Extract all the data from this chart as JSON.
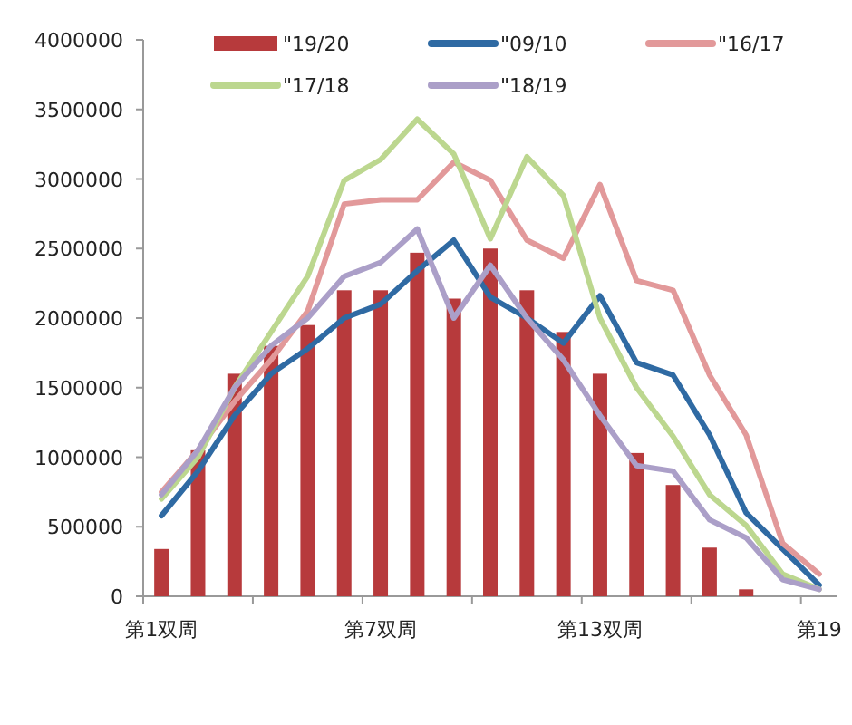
{
  "chart_data": {
    "type": "line",
    "categories": [
      "第1双周",
      null,
      null,
      null,
      null,
      null,
      "第7双周",
      null,
      null,
      null,
      null,
      null,
      "第13双周",
      null,
      null,
      null,
      null,
      null,
      "第19"
    ],
    "series": [
      {
        "name": "\"19/20",
        "type": "bar",
        "color": "#b73a3c",
        "values": [
          340000,
          1050000,
          1600000,
          1800000,
          1950000,
          2200000,
          2200000,
          2470000,
          2140000,
          2500000,
          2200000,
          1900000,
          1600000,
          1030000,
          800000,
          350000,
          50000,
          null,
          null
        ]
      },
      {
        "name": "\"09/10",
        "color": "#2f6aa3",
        "values": [
          580000,
          900000,
          1300000,
          1600000,
          1780000,
          2000000,
          2100000,
          2340000,
          2560000,
          2150000,
          2000000,
          1820000,
          2160000,
          1680000,
          1590000,
          1160000,
          600000,
          340000,
          80000
        ]
      },
      {
        "name": "\"16/17",
        "color": "#e2999a",
        "values": [
          750000,
          1050000,
          1400000,
          1700000,
          2050000,
          2820000,
          2850000,
          2850000,
          3120000,
          2990000,
          2560000,
          2430000,
          2960000,
          2270000,
          2200000,
          1590000,
          1160000,
          380000,
          160000
        ]
      },
      {
        "name": "\"17/18",
        "color": "#bcd78f",
        "values": [
          700000,
          1000000,
          1500000,
          1900000,
          2300000,
          2990000,
          3140000,
          3430000,
          3180000,
          2570000,
          3160000,
          2880000,
          2000000,
          1500000,
          1150000,
          730000,
          510000,
          160000,
          50000
        ]
      },
      {
        "name": "\"18/19",
        "color": "#ab9fc8",
        "values": [
          730000,
          1050000,
          1500000,
          1800000,
          2000000,
          2300000,
          2400000,
          2640000,
          2000000,
          2380000,
          2000000,
          1700000,
          1300000,
          940000,
          900000,
          550000,
          420000,
          120000,
          50000
        ]
      }
    ],
    "ylim": [
      0,
      4000000
    ],
    "yticks": [
      0,
      500000,
      1000000,
      1500000,
      2000000,
      2500000,
      3000000,
      3500000,
      4000000
    ],
    "grid": false,
    "legend": "top",
    "marker": "none",
    "line_style": "solid"
  }
}
